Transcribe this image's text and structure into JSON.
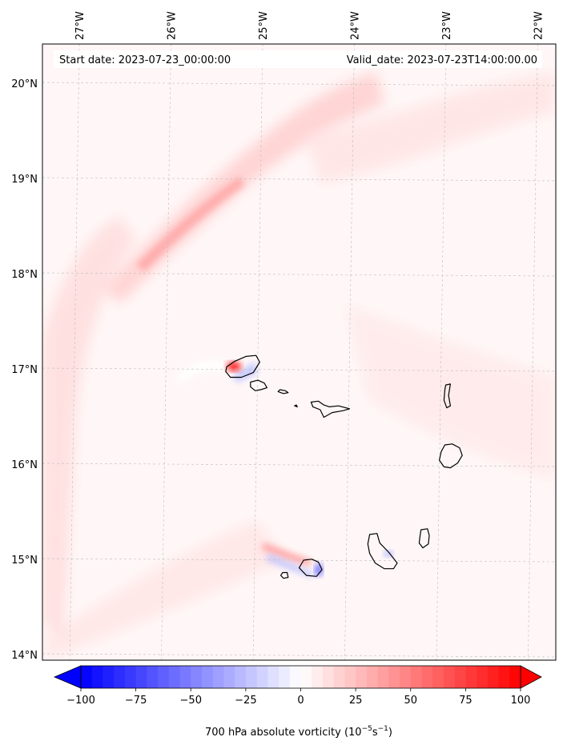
{
  "map": {
    "start_label": "Start date: 2023-07-23_00:00:00",
    "valid_label": "Valid_date: 2023-07-23T14:00:00.00",
    "lon_ticks": [
      {
        "lon": -27,
        "label": "27°W"
      },
      {
        "lon": -26,
        "label": "26°W"
      },
      {
        "lon": -25,
        "label": "25°W"
      },
      {
        "lon": -24,
        "label": "24°W"
      },
      {
        "lon": -23,
        "label": "23°W"
      },
      {
        "lon": -22,
        "label": "22°W"
      }
    ],
    "lat_ticks": [
      {
        "lat": 20,
        "label": "20°N"
      },
      {
        "lat": 19,
        "label": "19°N"
      },
      {
        "lat": 18,
        "label": "18°N"
      },
      {
        "lat": 17,
        "label": "17°N"
      },
      {
        "lat": 16,
        "label": "16°N"
      },
      {
        "lat": 15,
        "label": "15°N"
      },
      {
        "lat": 14,
        "label": "14°N"
      }
    ],
    "extent": {
      "lon_min": -27.35,
      "lon_max": -21.75,
      "lat_min": 13.95,
      "lat_max": 20.42
    },
    "colormap": {
      "name": "bwr",
      "negative": "#0000ff",
      "zero": "#ffffff",
      "positive": "#ff0000"
    },
    "colorbar": {
      "min": -100,
      "max": 100,
      "levels": 40,
      "extend": "both",
      "ticks": [
        {
          "value": -100,
          "label": "−100"
        },
        {
          "value": -75,
          "label": "−75"
        },
        {
          "value": -50,
          "label": "−50"
        },
        {
          "value": -25,
          "label": "−25"
        },
        {
          "value": 0,
          "label": "0"
        },
        {
          "value": 25,
          "label": "25"
        },
        {
          "value": 50,
          "label": "50"
        },
        {
          "value": 75,
          "label": "75"
        },
        {
          "value": 100,
          "label": "100"
        }
      ],
      "label_main": "700 hPa absolute vorticity (10",
      "label_exp1": "−5",
      "label_mid": "s",
      "label_exp2": "−1",
      "label_end": ")"
    },
    "islands": [
      {
        "name": "Santo Antão",
        "points": [
          [
            -25.34,
            17.03
          ],
          [
            -25.25,
            17.09
          ],
          [
            -25.13,
            17.14
          ],
          [
            -25.02,
            17.15
          ],
          [
            -24.98,
            17.08
          ],
          [
            -25.05,
            16.97
          ],
          [
            -25.18,
            16.92
          ],
          [
            -25.3,
            16.92
          ],
          [
            -25.35,
            16.98
          ]
        ]
      },
      {
        "name": "São Vicente",
        "points": [
          [
            -25.08,
            16.87
          ],
          [
            -25.0,
            16.89
          ],
          [
            -24.93,
            16.86
          ],
          [
            -24.9,
            16.81
          ],
          [
            -24.97,
            16.79
          ],
          [
            -25.03,
            16.78
          ],
          [
            -25.08,
            16.82
          ]
        ]
      },
      {
        "name": "Santa Luzia",
        "points": [
          [
            -24.78,
            16.77
          ],
          [
            -24.72,
            16.75
          ],
          [
            -24.67,
            16.76
          ],
          [
            -24.7,
            16.78
          ],
          [
            -24.76,
            16.79
          ]
        ]
      },
      {
        "name": "Raso",
        "points": [
          [
            -24.6,
            16.62
          ],
          [
            -24.57,
            16.61
          ],
          [
            -24.58,
            16.63
          ]
        ]
      },
      {
        "name": "São Nicolau",
        "points": [
          [
            -24.42,
            16.66
          ],
          [
            -24.34,
            16.67
          ],
          [
            -24.28,
            16.63
          ],
          [
            -24.22,
            16.61
          ],
          [
            -24.12,
            16.62
          ],
          [
            -24.0,
            16.59
          ],
          [
            -24.07,
            16.57
          ],
          [
            -24.19,
            16.55
          ],
          [
            -24.28,
            16.5
          ],
          [
            -24.32,
            16.58
          ],
          [
            -24.4,
            16.61
          ]
        ]
      },
      {
        "name": "Sal",
        "points": [
          [
            -22.95,
            16.84
          ],
          [
            -22.9,
            16.85
          ],
          [
            -22.92,
            16.73
          ],
          [
            -22.9,
            16.62
          ],
          [
            -22.94,
            16.6
          ],
          [
            -22.97,
            16.68
          ],
          [
            -22.96,
            16.79
          ]
        ]
      },
      {
        "name": "Boa Vista",
        "points": [
          [
            -22.96,
            16.21
          ],
          [
            -22.88,
            16.22
          ],
          [
            -22.8,
            16.18
          ],
          [
            -22.77,
            16.1
          ],
          [
            -22.82,
            16.02
          ],
          [
            -22.9,
            15.97
          ],
          [
            -22.97,
            15.98
          ],
          [
            -23.02,
            16.05
          ],
          [
            -23.0,
            16.14
          ]
        ]
      },
      {
        "name": "Maio",
        "points": [
          [
            -23.22,
            15.32
          ],
          [
            -23.15,
            15.33
          ],
          [
            -23.13,
            15.26
          ],
          [
            -23.14,
            15.17
          ],
          [
            -23.2,
            15.13
          ],
          [
            -23.24,
            15.18
          ],
          [
            -23.23,
            15.26
          ]
        ]
      },
      {
        "name": "Santiago",
        "points": [
          [
            -23.78,
            15.27
          ],
          [
            -23.7,
            15.28
          ],
          [
            -23.67,
            15.18
          ],
          [
            -23.57,
            15.08
          ],
          [
            -23.48,
            14.97
          ],
          [
            -23.52,
            14.91
          ],
          [
            -23.62,
            14.91
          ],
          [
            -23.72,
            14.97
          ],
          [
            -23.78,
            15.07
          ],
          [
            -23.8,
            15.17
          ]
        ]
      },
      {
        "name": "Fogo",
        "points": [
          [
            -24.34,
            14.98
          ],
          [
            -24.41,
            15.01
          ],
          [
            -24.5,
            15.0
          ],
          [
            -24.55,
            14.92
          ],
          [
            -24.47,
            14.84
          ],
          [
            -24.36,
            14.83
          ],
          [
            -24.3,
            14.9
          ]
        ]
      },
      {
        "name": "Brava",
        "points": [
          [
            -24.73,
            14.87
          ],
          [
            -24.68,
            14.87
          ],
          [
            -24.67,
            14.82
          ],
          [
            -24.72,
            14.81
          ],
          [
            -24.75,
            14.84
          ]
        ]
      }
    ]
  }
}
